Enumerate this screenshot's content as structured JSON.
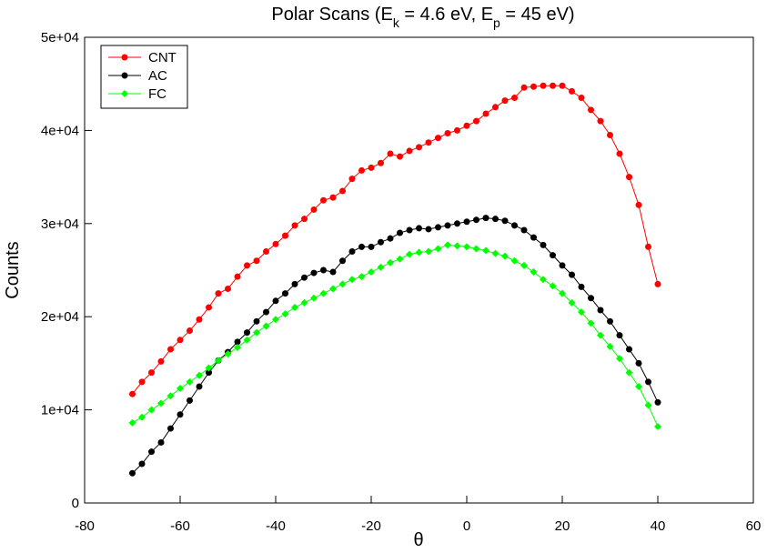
{
  "chart_data": {
    "type": "line",
    "title": [
      "Polar Scans (E",
      "k",
      " = 4.6 eV, E",
      "p",
      " = 45 eV)"
    ],
    "x_label": "θ",
    "y_label": "Counts",
    "x": [
      -70,
      -68,
      -66,
      -64,
      -62,
      -60,
      -58,
      -56,
      -54,
      -52,
      -50,
      -48,
      -46,
      -44,
      -42,
      -40,
      -38,
      -36,
      -34,
      -32,
      -30,
      -28,
      -26,
      -24,
      -22,
      -20,
      -18,
      -16,
      -14,
      -12,
      -10,
      -8,
      -6,
      -4,
      -2,
      0,
      2,
      4,
      6,
      8,
      10,
      12,
      14,
      16,
      18,
      20,
      22,
      24,
      26,
      28,
      30,
      32,
      34,
      36,
      38,
      40
    ],
    "series": [
      {
        "name": "CNT",
        "color": "#ff0000",
        "marker": "circle",
        "values": [
          11700,
          13000,
          14000,
          15200,
          16500,
          17500,
          18500,
          19700,
          21000,
          22500,
          23000,
          24300,
          25500,
          26000,
          27000,
          27800,
          28700,
          29800,
          30500,
          31500,
          32500,
          32800,
          33500,
          34800,
          35700,
          36000,
          36500,
          37500,
          37200,
          37800,
          38200,
          38700,
          39200,
          39700,
          40000,
          40500,
          41000,
          41800,
          42500,
          43200,
          43500,
          44600,
          44700,
          44800,
          44800,
          44800,
          44200,
          43500,
          42200,
          41000,
          39500,
          37500,
          35000,
          32000,
          27500,
          23500
        ]
      },
      {
        "name": "AC",
        "color": "#000000",
        "marker": "circle",
        "values": [
          3200,
          4200,
          5500,
          6500,
          8000,
          9500,
          11000,
          12500,
          14000,
          15300,
          16200,
          17300,
          18300,
          19500,
          20500,
          21700,
          22500,
          23500,
          24200,
          24700,
          25000,
          24800,
          26000,
          27000,
          27500,
          27500,
          28000,
          28400,
          29000,
          29300,
          29500,
          29400,
          29600,
          29800,
          30000,
          30200,
          30400,
          30600,
          30500,
          30300,
          29800,
          29300,
          28500,
          27700,
          26600,
          25500,
          24500,
          23200,
          22000,
          20700,
          19500,
          18000,
          16500,
          15000,
          13000,
          10800
        ]
      },
      {
        "name": "FC",
        "color": "#00ff00",
        "marker": "diamond",
        "values": [
          8600,
          9200,
          10000,
          10700,
          11500,
          12300,
          13000,
          13700,
          14500,
          15300,
          16000,
          16700,
          17500,
          18300,
          19000,
          19700,
          20300,
          21000,
          21500,
          22000,
          22500,
          23000,
          23500,
          24000,
          24300,
          24800,
          25300,
          25800,
          26200,
          26700,
          26900,
          27000,
          27300,
          27700,
          27600,
          27500,
          27300,
          27100,
          26800,
          26500,
          26000,
          25500,
          24800,
          24000,
          23300,
          22500,
          21500,
          20500,
          19300,
          18000,
          16800,
          15500,
          14000,
          12500,
          10500,
          8200
        ]
      }
    ],
    "xlim": [
      -80,
      60
    ],
    "xticks": [
      -80,
      -60,
      -40,
      -20,
      0,
      20,
      40,
      60
    ],
    "ylim": [
      0,
      50000
    ],
    "yticks": [
      0,
      {
        "value": 10000,
        "label": "1e+04"
      },
      {
        "value": 20000,
        "label": "2e+04"
      },
      {
        "value": 30000,
        "label": "3e+04"
      },
      {
        "value": 40000,
        "label": "4e+04"
      },
      {
        "value": 50000,
        "label": "5e+04"
      }
    ],
    "legend": "upper left"
  }
}
